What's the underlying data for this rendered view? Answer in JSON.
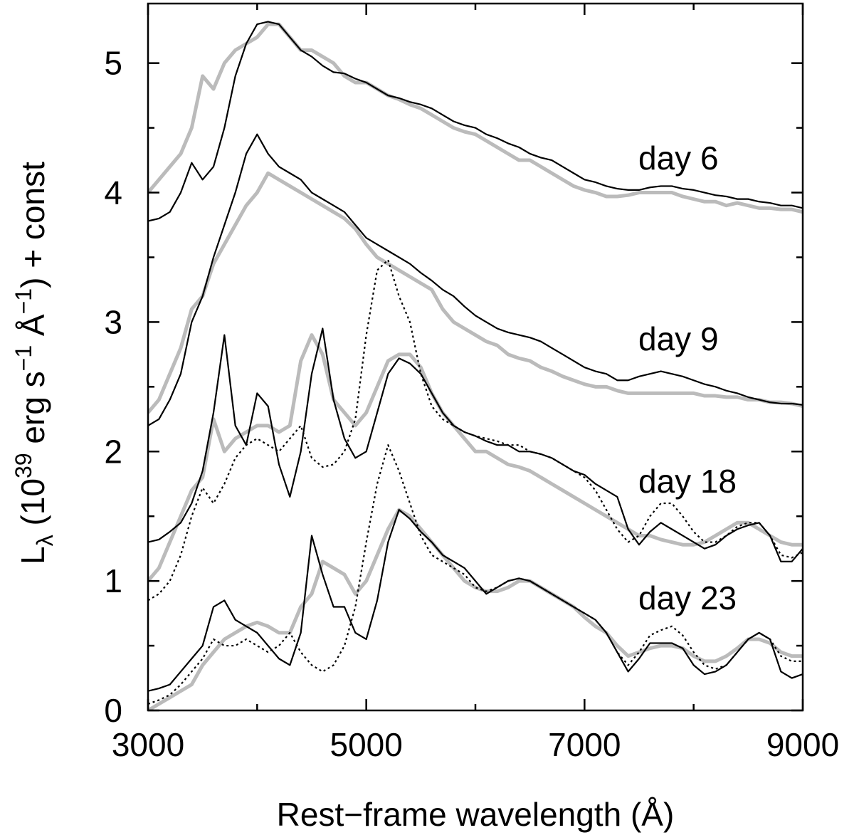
{
  "chart_data": {
    "type": "line",
    "xlabel": "Rest−frame wavelength (Å)",
    "ylabel": [
      "L",
      "λ",
      " (10",
      "39",
      " erg s",
      "−1",
      " Å",
      "−1",
      ") + const"
    ],
    "annotations": [
      "day 6",
      "day 9",
      "day 18",
      "day 23"
    ],
    "xlim": [
      3000,
      9000
    ],
    "ylim": [
      0,
      5.46
    ],
    "xticks": [
      3000,
      5000,
      7000,
      9000
    ],
    "xminorticks": [
      4000,
      6000,
      8000
    ],
    "yticks": [
      0,
      1,
      2,
      3,
      4,
      5
    ],
    "yminorticks": [
      0.5,
      1.5,
      2.5,
      3.5,
      4.5
    ],
    "x": [
      3000,
      3100,
      3200,
      3300,
      3400,
      3500,
      3600,
      3700,
      3800,
      3900,
      4000,
      4100,
      4200,
      4300,
      4400,
      4500,
      4600,
      4700,
      4800,
      4900,
      5000,
      5100,
      5200,
      5300,
      5400,
      5500,
      5600,
      5700,
      5800,
      5900,
      6000,
      6100,
      6200,
      6300,
      6400,
      6500,
      6600,
      6700,
      6800,
      6900,
      7000,
      7100,
      7200,
      7300,
      7400,
      7500,
      7600,
      7700,
      7800,
      7900,
      8000,
      8100,
      8200,
      8300,
      8400,
      8500,
      8600,
      8700,
      8800,
      8900,
      9000
    ],
    "series": [
      {
        "color": "#bbbbbb",
        "values": [
          4.0,
          4.1,
          4.2,
          4.3,
          4.5,
          4.9,
          4.8,
          5.0,
          5.1,
          5.15,
          5.2,
          5.3,
          5.3,
          5.2,
          5.1,
          5.1,
          5.05,
          5.0,
          4.9,
          4.85,
          4.85,
          4.8,
          4.75,
          4.72,
          4.68,
          4.65,
          4.6,
          4.55,
          4.5,
          4.47,
          4.45,
          4.4,
          4.35,
          4.3,
          4.25,
          4.25,
          4.2,
          4.15,
          4.1,
          4.05,
          4.02,
          4.0,
          3.97,
          3.97,
          3.98,
          4.0,
          4.0,
          4.0,
          4.0,
          3.97,
          3.95,
          3.93,
          3.93,
          3.9,
          3.92,
          3.9,
          3.88,
          3.88,
          3.87,
          3.87,
          3.85
        ]
      },
      {
        "color": "#bbbbbb",
        "values": [
          2.3,
          2.4,
          2.6,
          2.8,
          3.1,
          3.2,
          3.45,
          3.6,
          3.75,
          3.9,
          4.0,
          4.15,
          4.1,
          4.05,
          4.0,
          3.95,
          3.9,
          3.85,
          3.8,
          3.72,
          3.6,
          3.5,
          3.45,
          3.4,
          3.35,
          3.3,
          3.25,
          3.1,
          3.0,
          2.95,
          2.9,
          2.85,
          2.82,
          2.75,
          2.72,
          2.7,
          2.65,
          2.62,
          2.58,
          2.55,
          2.52,
          2.5,
          2.5,
          2.47,
          2.45,
          2.45,
          2.45,
          2.45,
          2.45,
          2.45,
          2.45,
          2.43,
          2.43,
          2.42,
          2.42,
          2.4,
          2.4,
          2.38,
          2.38,
          2.37,
          2.35
        ]
      },
      {
        "color": "#bbbbbb",
        "values": [
          1.0,
          1.1,
          1.3,
          1.5,
          1.7,
          1.8,
          2.25,
          2.0,
          2.1,
          2.15,
          2.2,
          2.2,
          2.15,
          2.2,
          2.7,
          2.9,
          2.75,
          2.4,
          2.3,
          2.2,
          2.3,
          2.5,
          2.7,
          2.75,
          2.75,
          2.65,
          2.45,
          2.3,
          2.2,
          2.1,
          2.0,
          2.0,
          1.95,
          1.9,
          1.88,
          1.85,
          1.8,
          1.75,
          1.7,
          1.65,
          1.6,
          1.55,
          1.5,
          1.45,
          1.4,
          1.35,
          1.35,
          1.32,
          1.3,
          1.28,
          1.28,
          1.3,
          1.35,
          1.4,
          1.45,
          1.45,
          1.4,
          1.35,
          1.3,
          1.28,
          1.28
        ]
      },
      {
        "color": "#bbbbbb",
        "values": [
          0.0,
          0.05,
          0.1,
          0.15,
          0.2,
          0.35,
          0.45,
          0.55,
          0.6,
          0.65,
          0.68,
          0.65,
          0.6,
          0.6,
          0.8,
          0.9,
          1.15,
          1.1,
          1.05,
          0.9,
          1.0,
          1.2,
          1.4,
          1.55,
          1.5,
          1.4,
          1.3,
          1.2,
          1.1,
          1.0,
          0.95,
          0.92,
          0.92,
          0.95,
          1.0,
          1.0,
          0.95,
          0.9,
          0.85,
          0.8,
          0.72,
          0.65,
          0.6,
          0.5,
          0.42,
          0.45,
          0.48,
          0.5,
          0.5,
          0.48,
          0.42,
          0.38,
          0.38,
          0.42,
          0.48,
          0.55,
          0.55,
          0.52,
          0.45,
          0.42,
          0.42
        ]
      },
      {
        "color": "#000000",
        "values": [
          3.78,
          3.8,
          3.85,
          4.0,
          4.23,
          4.1,
          4.2,
          4.5,
          4.9,
          5.15,
          5.3,
          5.32,
          5.3,
          5.2,
          5.1,
          5.05,
          4.98,
          4.93,
          4.92,
          4.88,
          4.85,
          4.8,
          4.75,
          4.73,
          4.7,
          4.68,
          4.65,
          4.6,
          4.55,
          4.52,
          4.5,
          4.45,
          4.42,
          4.38,
          4.35,
          4.3,
          4.27,
          4.25,
          4.2,
          4.15,
          4.1,
          4.08,
          4.05,
          4.03,
          4.02,
          4.02,
          4.04,
          4.05,
          4.05,
          4.03,
          4.02,
          4.0,
          3.98,
          3.97,
          3.95,
          3.95,
          3.93,
          3.92,
          3.9,
          3.9,
          3.88
        ]
      },
      {
        "color": "#000000",
        "values": [
          2.2,
          2.25,
          2.4,
          2.6,
          3.0,
          3.2,
          3.5,
          3.75,
          4.0,
          4.3,
          4.45,
          4.3,
          4.2,
          4.15,
          4.1,
          4.0,
          3.95,
          3.9,
          3.85,
          3.75,
          3.65,
          3.6,
          3.55,
          3.5,
          3.45,
          3.38,
          3.32,
          3.25,
          3.2,
          3.12,
          3.05,
          3.0,
          2.95,
          2.92,
          2.9,
          2.88,
          2.85,
          2.8,
          2.75,
          2.7,
          2.65,
          2.62,
          2.6,
          2.55,
          2.55,
          2.58,
          2.6,
          2.62,
          2.6,
          2.58,
          2.55,
          2.52,
          2.5,
          2.47,
          2.45,
          2.42,
          2.4,
          2.38,
          2.37,
          2.37,
          2.36
        ]
      },
      {
        "color": "#000000",
        "values": [
          1.3,
          1.32,
          1.38,
          1.45,
          1.6,
          1.85,
          2.3,
          2.9,
          2.2,
          2.05,
          2.45,
          2.35,
          1.9,
          1.65,
          2.0,
          2.6,
          2.95,
          2.4,
          2.1,
          1.95,
          2.0,
          2.3,
          2.6,
          2.72,
          2.68,
          2.6,
          2.45,
          2.3,
          2.2,
          2.15,
          2.12,
          2.08,
          2.05,
          2.05,
          2.0,
          2.0,
          1.98,
          1.95,
          1.9,
          1.85,
          1.82,
          1.75,
          1.7,
          1.65,
          1.4,
          1.28,
          1.38,
          1.45,
          1.4,
          1.35,
          1.3,
          1.25,
          1.28,
          1.35,
          1.4,
          1.43,
          1.45,
          1.35,
          1.15,
          1.15,
          1.25
        ]
      },
      {
        "color": "#000000",
        "values": [
          0.15,
          0.17,
          0.2,
          0.3,
          0.4,
          0.5,
          0.8,
          0.85,
          0.7,
          0.65,
          0.6,
          0.5,
          0.4,
          0.35,
          0.6,
          1.35,
          1.05,
          0.8,
          0.8,
          0.6,
          0.55,
          0.85,
          1.3,
          1.55,
          1.48,
          1.38,
          1.3,
          1.2,
          1.15,
          1.1,
          1.0,
          0.9,
          0.95,
          1.0,
          1.02,
          1.0,
          0.95,
          0.9,
          0.85,
          0.8,
          0.75,
          0.7,
          0.6,
          0.45,
          0.3,
          0.4,
          0.52,
          0.52,
          0.52,
          0.48,
          0.35,
          0.28,
          0.3,
          0.35,
          0.45,
          0.55,
          0.6,
          0.55,
          0.3,
          0.25,
          0.28
        ]
      },
      {
        "color": "#000000",
        "dash": "dotted",
        "values": [
          0.85,
          0.9,
          1.0,
          1.2,
          1.5,
          1.72,
          1.6,
          1.75,
          1.95,
          2.05,
          2.1,
          2.05,
          2.0,
          2.1,
          2.2,
          1.95,
          1.88,
          1.9,
          2.0,
          2.25,
          2.9,
          3.4,
          3.48,
          3.2,
          3.0,
          2.6,
          2.35,
          2.25,
          2.2,
          2.15,
          2.12,
          2.1,
          2.08,
          2.05,
          2.05,
          2.0,
          1.98,
          1.95,
          1.9,
          1.85,
          1.8,
          1.7,
          1.55,
          1.4,
          1.3,
          1.35,
          1.5,
          1.6,
          1.6,
          1.5,
          1.38,
          1.3,
          1.3,
          1.35,
          1.42,
          1.45,
          1.45,
          1.35,
          1.2,
          1.18,
          1.22
        ]
      },
      {
        "color": "#000000",
        "dash": "dotted",
        "values": [
          0.05,
          0.08,
          0.12,
          0.2,
          0.3,
          0.4,
          0.55,
          0.5,
          0.5,
          0.55,
          0.5,
          0.45,
          0.5,
          0.6,
          0.45,
          0.35,
          0.3,
          0.35,
          0.5,
          0.8,
          1.3,
          1.75,
          2.05,
          1.85,
          1.6,
          1.35,
          1.2,
          1.15,
          1.1,
          1.05,
          0.95,
          0.92,
          0.95,
          1.0,
          1.02,
          1.0,
          0.95,
          0.9,
          0.85,
          0.8,
          0.75,
          0.7,
          0.6,
          0.45,
          0.35,
          0.45,
          0.58,
          0.62,
          0.65,
          0.58,
          0.45,
          0.35,
          0.32,
          0.35,
          0.45,
          0.55,
          0.6,
          0.55,
          0.42,
          0.38,
          0.38
        ]
      }
    ]
  }
}
